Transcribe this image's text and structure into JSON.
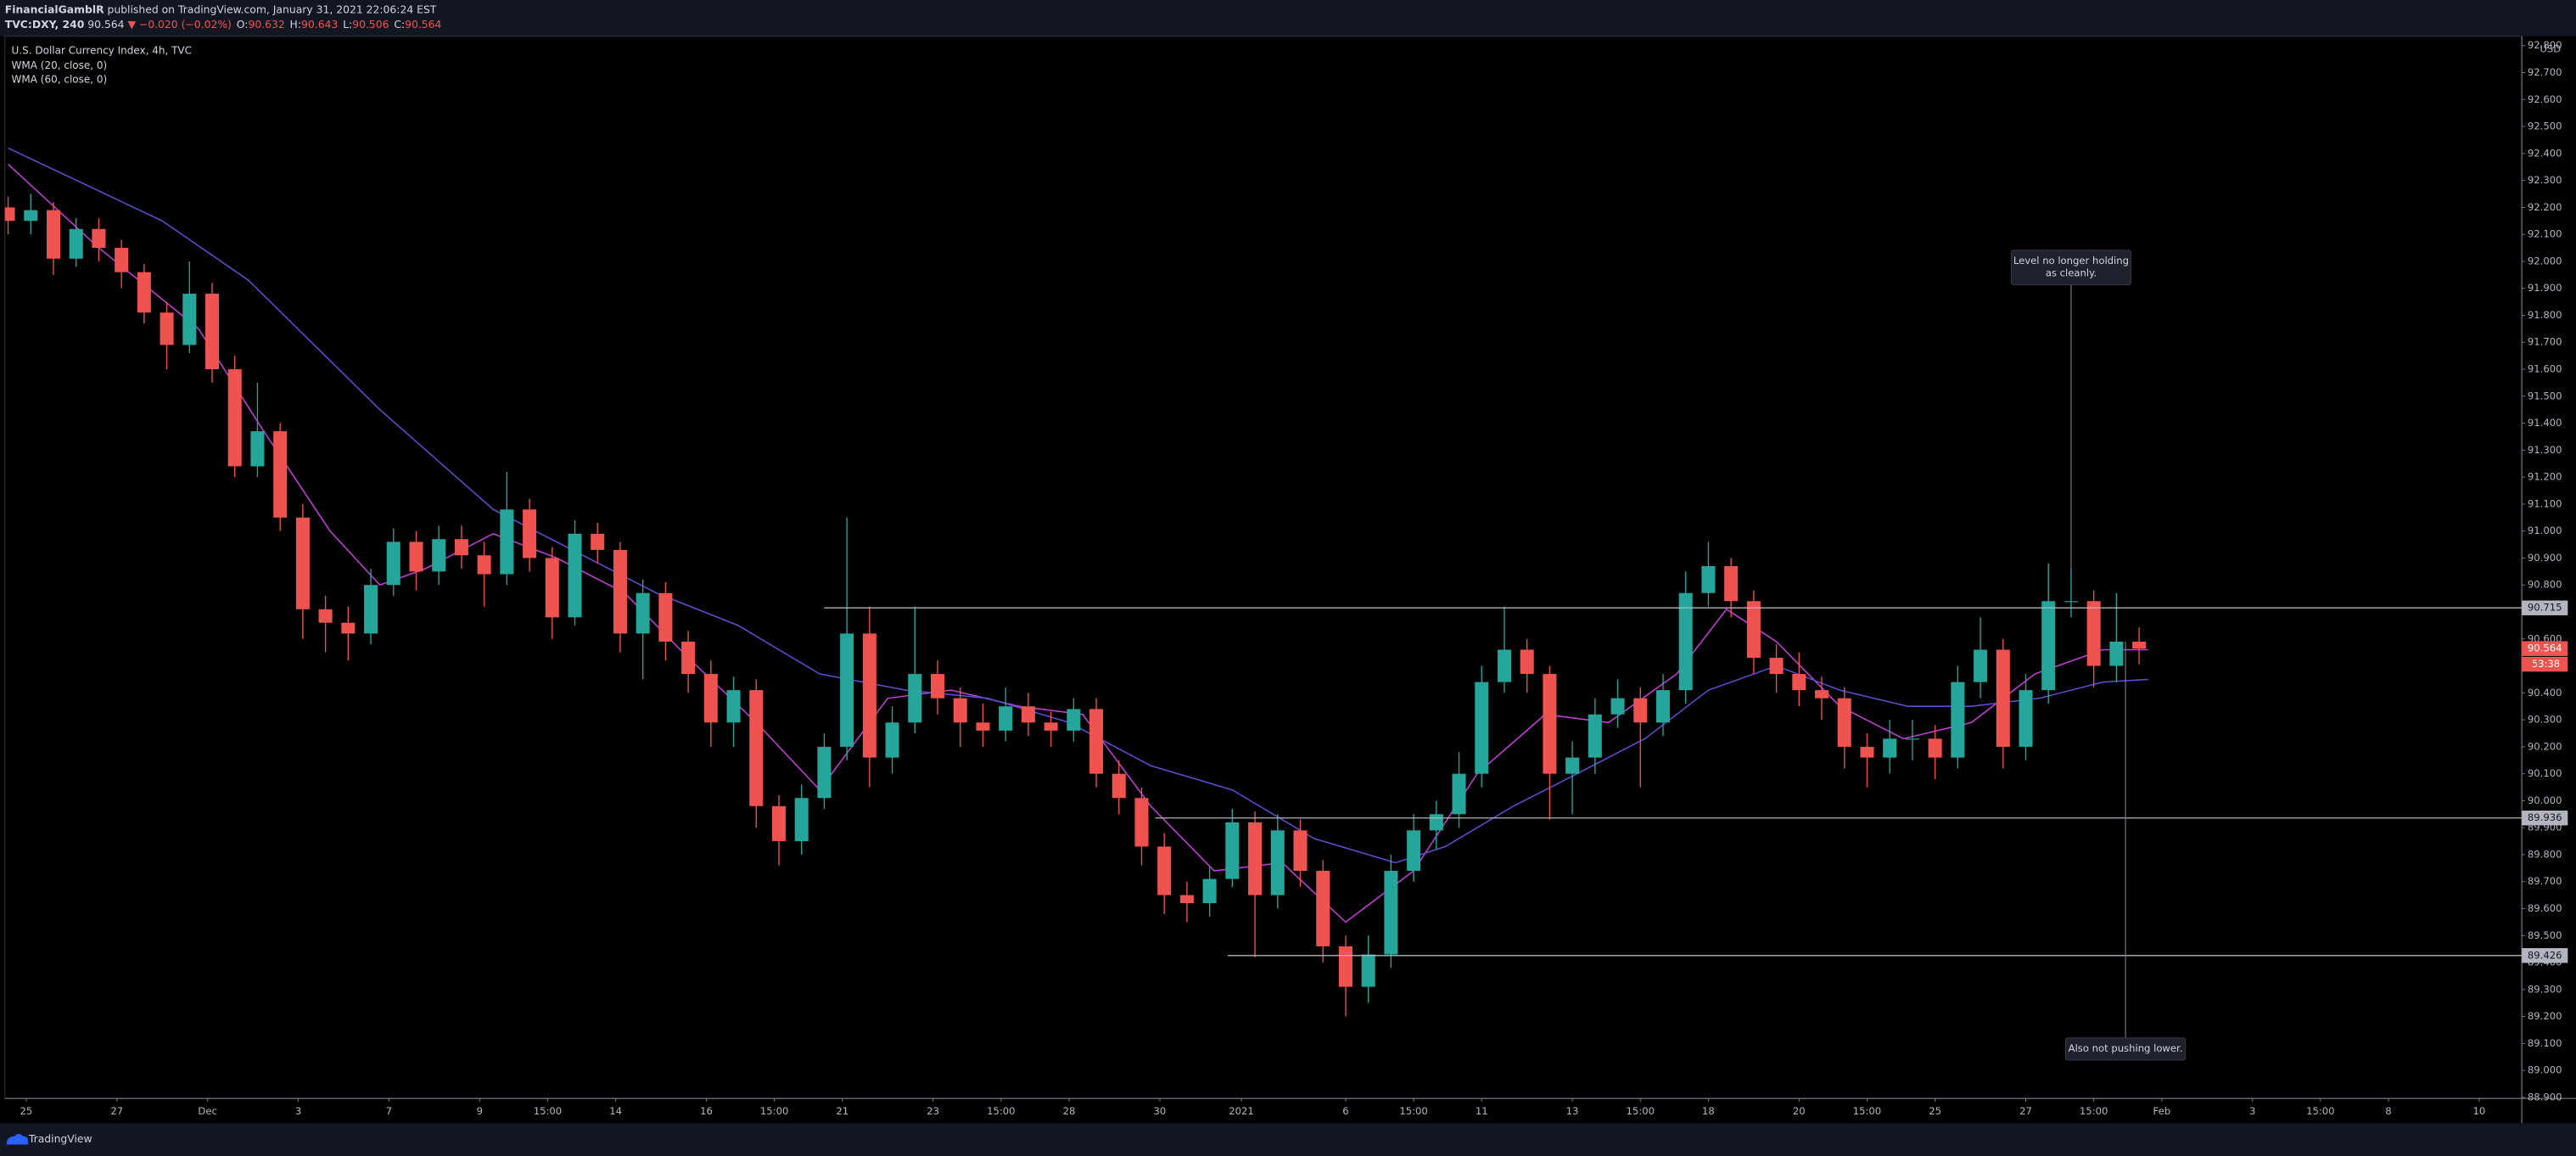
{
  "header": {
    "publisher": "FinancialGamblR",
    "published": "published on TradingView.com, January 31, 2021 22:06:24 EST",
    "symbol": "TVC:DXY, 240",
    "last": 90.564,
    "change": "▼ −0.020 (−0.02%)",
    "ohlc": [
      {
        "label": "O:",
        "value": 90.632
      },
      {
        "label": "H:",
        "value": 90.643
      },
      {
        "label": "L:",
        "value": 90.506
      },
      {
        "label": "C:",
        "value": 90.564
      }
    ]
  },
  "chart_data": {
    "type": "candlestick",
    "title": "U.S. Dollar Currency Index, 4h, TVC",
    "currency": "USD",
    "up_color": "#26a69a",
    "down_color": "#ef5350",
    "x": [
      -0.4,
      0.1,
      0.6,
      1.1,
      1.6,
      2.1,
      2.6,
      3.1,
      3.6,
      4.1,
      4.6,
      5.1,
      5.6,
      6.1,
      6.6,
      7.1,
      7.6,
      8.1,
      8.6,
      9.1,
      9.6,
      10.1,
      10.6,
      11.1,
      11.6,
      12.1,
      12.6,
      13.1,
      13.6,
      14.1,
      14.6,
      15.1,
      15.6,
      16.1,
      16.6,
      17.1,
      17.6,
      18.1,
      18.6,
      19.1,
      19.6,
      20.1,
      20.6,
      21.1,
      21.6,
      22.1,
      22.6,
      23.1,
      23.6,
      24.1,
      24.6,
      25.1,
      25.6,
      26.1,
      26.6,
      27.1,
      27.6,
      28.1,
      28.6,
      29.1,
      29.6,
      30.1,
      30.6,
      31.1,
      31.6,
      32.1,
      32.6,
      33.1,
      33.6,
      34.1,
      34.6,
      35.1,
      35.6,
      36.1,
      36.6,
      37.1,
      37.6,
      38.1,
      38.6,
      39.1,
      39.6,
      40.1,
      40.6,
      41.1,
      41.6,
      42.1,
      42.6,
      43.1,
      43.6,
      44.1,
      44.6,
      45.1,
      45.6,
      46.1,
      46.6
    ],
    "open": [
      92.2,
      92.15,
      92.19,
      92.01,
      92.12,
      92.05,
      91.96,
      91.81,
      91.69,
      91.88,
      91.6,
      91.24,
      91.37,
      91.05,
      90.71,
      90.66,
      90.62,
      90.8,
      90.96,
      90.85,
      90.97,
      90.91,
      90.84,
      91.08,
      90.9,
      90.68,
      90.99,
      90.93,
      90.62,
      90.77,
      90.59,
      90.47,
      90.29,
      90.41,
      89.98,
      89.85,
      90.01,
      90.2,
      90.62,
      90.16,
      90.29,
      90.47,
      90.38,
      90.29,
      90.26,
      90.35,
      90.29,
      90.26,
      90.34,
      90.1,
      90.01,
      89.83,
      89.65,
      89.62,
      89.71,
      89.92,
      89.65,
      89.89,
      89.74,
      89.46,
      89.31,
      89.43,
      89.74,
      89.89,
      89.95,
      90.1,
      90.44,
      90.56,
      90.47,
      90.1,
      90.16,
      90.32,
      90.38,
      90.29,
      90.41,
      90.77,
      90.87,
      90.74,
      90.53,
      90.47,
      90.41,
      90.38,
      90.2,
      90.16,
      90.23,
      90.23,
      90.16,
      90.44,
      90.56,
      90.2,
      90.41,
      90.74,
      90.74,
      90.5,
      90.59
    ],
    "high": [
      92.24,
      92.25,
      92.22,
      92.16,
      92.16,
      92.08,
      91.99,
      91.85,
      92.0,
      91.92,
      91.65,
      91.55,
      91.4,
      91.1,
      90.76,
      90.72,
      90.86,
      91.01,
      91.0,
      91.02,
      91.02,
      90.96,
      91.22,
      91.12,
      90.94,
      91.04,
      91.03,
      90.96,
      90.82,
      90.81,
      90.63,
      90.52,
      90.46,
      90.45,
      90.02,
      90.06,
      90.25,
      91.05,
      90.72,
      90.35,
      90.72,
      90.52,
      90.42,
      90.36,
      90.42,
      90.4,
      90.33,
      90.38,
      90.38,
      90.15,
      90.05,
      89.88,
      89.7,
      89.76,
      89.97,
      89.96,
      89.95,
      89.93,
      89.78,
      89.5,
      89.5,
      89.8,
      89.95,
      90.0,
      90.18,
      90.5,
      90.72,
      90.6,
      90.5,
      90.22,
      90.38,
      90.45,
      90.42,
      90.47,
      90.85,
      90.96,
      90.9,
      90.78,
      90.58,
      90.55,
      90.46,
      90.42,
      90.25,
      90.3,
      90.3,
      90.28,
      90.5,
      90.68,
      90.6,
      90.47,
      90.88,
      90.86,
      90.78,
      90.77,
      90.643
    ],
    "low": [
      92.1,
      92.1,
      91.95,
      91.98,
      92.0,
      91.9,
      91.77,
      91.6,
      91.66,
      91.55,
      91.2,
      91.2,
      91.0,
      90.6,
      90.55,
      90.52,
      90.58,
      90.76,
      90.78,
      90.8,
      90.86,
      90.72,
      90.8,
      90.85,
      90.6,
      90.65,
      90.88,
      90.55,
      90.45,
      90.52,
      90.4,
      90.2,
      90.2,
      89.9,
      89.76,
      89.8,
      89.97,
      90.15,
      90.05,
      90.1,
      90.25,
      90.32,
      90.2,
      90.2,
      90.22,
      90.24,
      90.2,
      90.22,
      90.05,
      89.95,
      89.76,
      89.58,
      89.55,
      89.57,
      89.68,
      89.42,
      89.6,
      89.68,
      89.4,
      89.2,
      89.25,
      89.38,
      89.7,
      89.82,
      89.9,
      90.05,
      90.4,
      90.4,
      89.93,
      89.95,
      90.1,
      90.27,
      90.05,
      90.24,
      90.36,
      90.72,
      90.68,
      90.47,
      90.4,
      90.35,
      90.3,
      90.12,
      90.05,
      90.1,
      90.15,
      90.08,
      90.12,
      90.38,
      90.12,
      90.15,
      90.36,
      90.68,
      90.42,
      90.44,
      90.506
    ],
    "close": [
      92.15,
      92.19,
      92.01,
      92.12,
      92.05,
      91.96,
      91.81,
      91.69,
      91.88,
      91.6,
      91.24,
      91.37,
      91.05,
      90.71,
      90.66,
      90.62,
      90.8,
      90.96,
      90.85,
      90.97,
      90.91,
      90.84,
      91.08,
      90.9,
      90.68,
      90.99,
      90.93,
      90.62,
      90.77,
      90.59,
      90.47,
      90.29,
      90.41,
      89.98,
      89.85,
      90.01,
      90.2,
      90.62,
      90.16,
      90.29,
      90.47,
      90.38,
      90.29,
      90.26,
      90.35,
      90.29,
      90.26,
      90.34,
      90.1,
      90.01,
      89.83,
      89.65,
      89.62,
      89.71,
      89.92,
      89.65,
      89.89,
      89.74,
      89.46,
      89.31,
      89.43,
      89.74,
      89.89,
      89.95,
      90.1,
      90.44,
      90.56,
      90.47,
      90.1,
      90.16,
      90.32,
      90.38,
      90.29,
      90.41,
      90.77,
      90.87,
      90.74,
      90.53,
      90.47,
      90.41,
      90.38,
      90.2,
      90.16,
      90.23,
      90.23,
      90.16,
      90.44,
      90.56,
      90.2,
      90.41,
      90.74,
      90.74,
      90.5,
      90.59,
      90.564
    ],
    "series": [
      {
        "name": "WMA (20, close, 0)",
        "color": "#c23fd4",
        "x": [
          -0.4,
          1.6,
          3.8,
          5.2,
          6.7,
          7.8,
          8.8,
          10.3,
          11.7,
          13.2,
          14.6,
          16.1,
          17.5,
          19.0,
          20.4,
          21.9,
          23.3,
          24.8,
          26.2,
          27.7,
          29.1,
          30.6,
          32.0,
          33.5,
          34.9,
          36.4,
          37.5,
          38.6,
          40.0,
          41.4,
          42.9,
          44.3,
          45.8,
          46.8
        ],
        "values": [
          92.36,
          92.05,
          91.75,
          91.38,
          91.0,
          90.8,
          90.86,
          90.99,
          90.9,
          90.77,
          90.53,
          90.29,
          90.04,
          90.38,
          90.41,
          90.35,
          90.32,
          89.98,
          89.74,
          89.77,
          89.55,
          89.74,
          90.1,
          90.32,
          90.29,
          90.47,
          90.71,
          90.59,
          90.35,
          90.23,
          90.29,
          90.47,
          90.56,
          90.56
        ]
      },
      {
        "name": "WMA (60, close, 0)",
        "color": "#5b4fd0",
        "x": [
          -0.4,
          3.0,
          4.9,
          7.8,
          10.3,
          13.9,
          15.7,
          17.5,
          19.4,
          21.2,
          23.0,
          24.8,
          26.6,
          28.4,
          30.2,
          31.3,
          32.8,
          34.2,
          35.7,
          37.1,
          38.6,
          40.0,
          41.5,
          42.9,
          44.4,
          45.8,
          46.8
        ],
        "values": [
          92.42,
          92.15,
          91.93,
          91.45,
          91.08,
          90.77,
          90.65,
          90.47,
          90.41,
          90.38,
          90.29,
          90.13,
          90.04,
          89.86,
          89.77,
          89.83,
          89.98,
          90.1,
          90.23,
          90.41,
          90.5,
          90.41,
          90.35,
          90.35,
          90.38,
          90.44,
          90.45
        ]
      }
    ],
    "xlim": [
      -0.47,
      55.04
    ],
    "ylim": [
      88.896,
      92.835
    ],
    "yticks": [
      {
        "value": 88.9,
        "label": "88.900"
      },
      {
        "value": 89.0,
        "label": "89.000"
      },
      {
        "value": 89.1,
        "label": "89.100"
      },
      {
        "value": 89.2,
        "label": "89.200"
      },
      {
        "value": 89.3,
        "label": "89.300"
      },
      {
        "value": 89.4,
        "label": "89.400"
      },
      {
        "value": 89.5,
        "label": "89.500"
      },
      {
        "value": 89.6,
        "label": "89.600"
      },
      {
        "value": 89.7,
        "label": "89.700"
      },
      {
        "value": 89.8,
        "label": "89.800"
      },
      {
        "value": 89.9,
        "label": "89.900"
      },
      {
        "value": 90.0,
        "label": "90.000"
      },
      {
        "value": 90.1,
        "label": "90.100"
      },
      {
        "value": 90.2,
        "label": "90.200"
      },
      {
        "value": 90.3,
        "label": "90.300"
      },
      {
        "value": 90.4,
        "label": "90.400"
      },
      {
        "value": 90.5,
        "label": "90.500"
      },
      {
        "value": 90.6,
        "label": "90.600"
      },
      {
        "value": 90.7,
        "label": "90.700"
      },
      {
        "value": 90.8,
        "label": "90.800"
      },
      {
        "value": 90.9,
        "label": "90.900"
      },
      {
        "value": 91.0,
        "label": "91.000"
      },
      {
        "value": 91.1,
        "label": "91.100"
      },
      {
        "value": 91.2,
        "label": "91.200"
      },
      {
        "value": 91.3,
        "label": "91.300"
      },
      {
        "value": 91.4,
        "label": "91.400"
      },
      {
        "value": 91.5,
        "label": "91.500"
      },
      {
        "value": 91.6,
        "label": "91.600"
      },
      {
        "value": 91.7,
        "label": "91.700"
      },
      {
        "value": 91.8,
        "label": "91.800"
      },
      {
        "value": 91.9,
        "label": "91.900"
      },
      {
        "value": 92.0,
        "label": "92.000"
      },
      {
        "value": 92.1,
        "label": "92.100"
      },
      {
        "value": 92.2,
        "label": "92.200"
      },
      {
        "value": 92.3,
        "label": "92.300"
      },
      {
        "value": 92.4,
        "label": "92.400"
      },
      {
        "value": 92.5,
        "label": "92.500"
      },
      {
        "value": 92.6,
        "label": "92.600"
      },
      {
        "value": 92.7,
        "label": "92.700"
      },
      {
        "value": 92.8,
        "label": "92.800"
      }
    ],
    "xticks": [
      {
        "value": 0,
        "label": "25"
      },
      {
        "value": 2,
        "label": "27"
      },
      {
        "value": 4,
        "label": "Dec"
      },
      {
        "value": 6,
        "label": "3"
      },
      {
        "value": 8,
        "label": "7"
      },
      {
        "value": 10,
        "label": "9"
      },
      {
        "value": 11.5,
        "label": "15:00"
      },
      {
        "value": 13,
        "label": "14"
      },
      {
        "value": 15,
        "label": "16"
      },
      {
        "value": 16.5,
        "label": "15:00"
      },
      {
        "value": 18,
        "label": "21"
      },
      {
        "value": 20,
        "label": "23"
      },
      {
        "value": 21.5,
        "label": "15:00"
      },
      {
        "value": 23,
        "label": "28"
      },
      {
        "value": 25,
        "label": "30"
      },
      {
        "value": 26.8,
        "label": "2021"
      },
      {
        "value": 29.1,
        "label": "6"
      },
      {
        "value": 30.6,
        "label": "15:00"
      },
      {
        "value": 32.1,
        "label": "11"
      },
      {
        "value": 34.1,
        "label": "13"
      },
      {
        "value": 35.6,
        "label": "15:00"
      },
      {
        "value": 37.1,
        "label": "18"
      },
      {
        "value": 39.1,
        "label": "20"
      },
      {
        "value": 40.6,
        "label": "15:00"
      },
      {
        "value": 42.1,
        "label": "25"
      },
      {
        "value": 44.1,
        "label": "27"
      },
      {
        "value": 45.6,
        "label": "15:00"
      },
      {
        "value": 47.1,
        "label": "Feb"
      },
      {
        "value": 49.1,
        "label": "3"
      },
      {
        "value": 50.6,
        "label": "15:00"
      },
      {
        "value": 52.1,
        "label": "8"
      },
      {
        "value": 54.1,
        "label": "10"
      }
    ],
    "levels": [
      {
        "price": 90.715,
        "start": 17.6
      },
      {
        "price": 89.936,
        "start": 24.9
      },
      {
        "price": 89.426,
        "start": 26.5
      }
    ],
    "last_price": {
      "value": 90.564,
      "countdown": "53:38"
    },
    "annotations": [
      {
        "text": [
          "Level no longer holding",
          "as cleanly."
        ],
        "x": 45.1,
        "price": 90.84
      },
      {
        "text": [
          "Also not pushing lower."
        ],
        "x": 46.3,
        "price": 90.59
      }
    ]
  },
  "footer": {
    "brand": "TradingView"
  }
}
